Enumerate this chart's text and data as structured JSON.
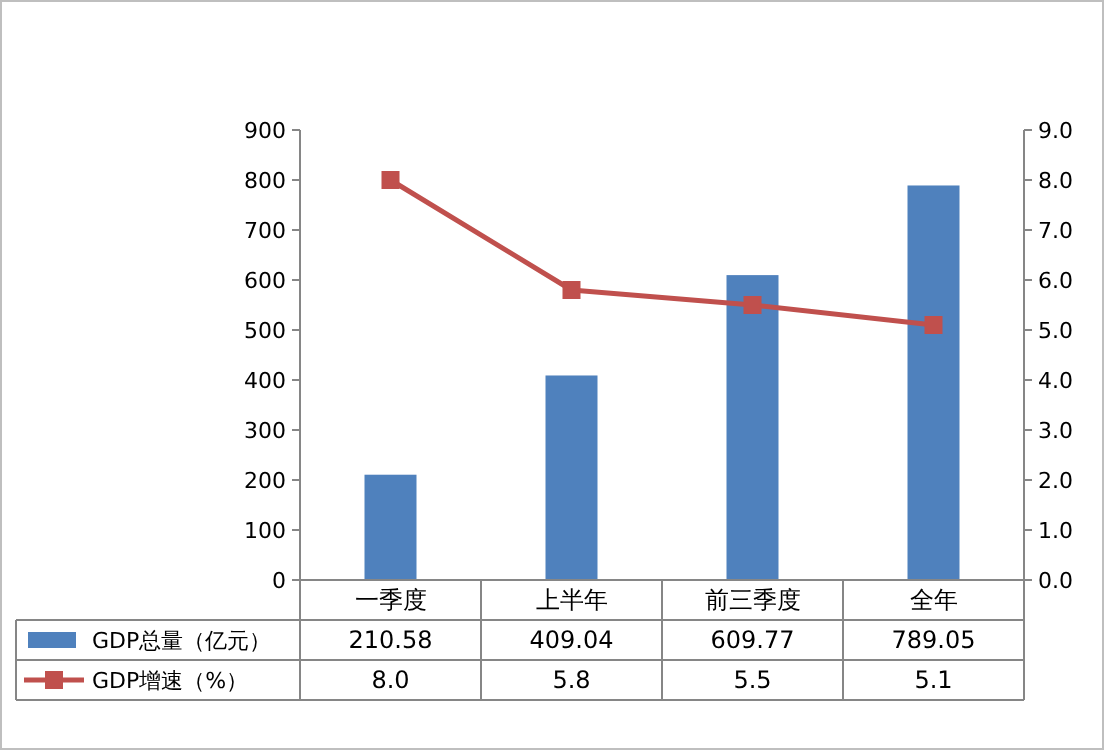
{
  "chart_data": {
    "type": "bar",
    "categories": [
      "一季度",
      "上半年",
      "前三季度",
      "全年"
    ],
    "series": [
      {
        "name": "GDP总量（亿元）",
        "color": "#4f81bd",
        "values": [
          210.58,
          409.04,
          609.77,
          789.05
        ],
        "value_labels": [
          "210.58",
          "409.04",
          "609.77",
          "789.05"
        ]
      },
      {
        "name": "GDP增速（%）",
        "type": "line",
        "axis": "y2",
        "color": "#c0504d",
        "marker": "square",
        "line_style": "solid",
        "values": [
          8.0,
          5.8,
          5.5,
          5.1
        ],
        "value_labels": [
          "8.0",
          "5.8",
          "5.5",
          "5.1"
        ]
      }
    ],
    "ylim": [
      0,
      900
    ],
    "yticks": [
      0,
      100,
      200,
      300,
      400,
      500,
      600,
      700,
      800,
      900
    ],
    "y2lim": [
      0,
      9
    ],
    "y2ticks": [
      {
        "value": 0,
        "label": "0.0"
      },
      {
        "value": 1,
        "label": "1.0"
      },
      {
        "value": 2,
        "label": "2.0"
      },
      {
        "value": 3,
        "label": "3.0"
      },
      {
        "value": 4,
        "label": "4.0"
      },
      {
        "value": 5,
        "label": "5.0"
      },
      {
        "value": 6,
        "label": "6.0"
      },
      {
        "value": 7,
        "label": "7.0"
      },
      {
        "value": 8,
        "label": "8.0"
      },
      {
        "value": 9,
        "label": "9.0"
      }
    ],
    "legend": "bottom",
    "data_labels": true
  }
}
